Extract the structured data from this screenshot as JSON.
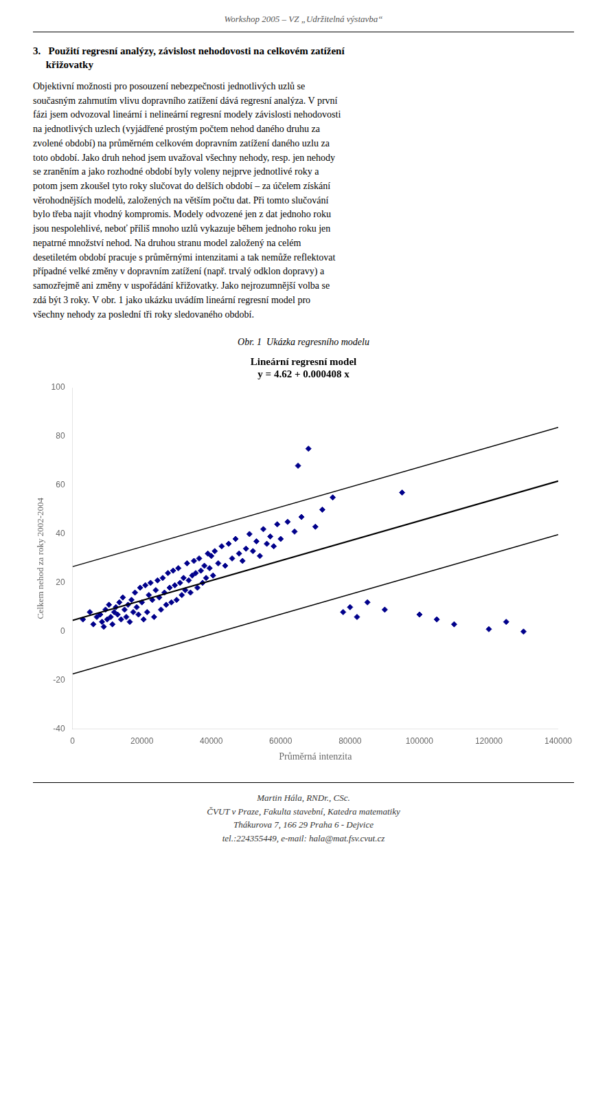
{
  "header": "Workshop 2005 – VZ „Udržitelná výstavba“",
  "section_heading": "3.   Použití regresní analýzy, závislost nehodovosti na celkovém zatížení\n     křižovatky",
  "body_lines": [
    "Objektivní možnosti pro posouzení nebezpečnosti jednotlivých uzlů se",
    "současným zahrnutím vlivu dopravního zatížení dává regresní analýza. V první",
    "fázi jsem odvozoval lineární i nelineární regresní modely závislosti nehodovosti",
    "na jednotlivých uzlech (vyjádřené prostým počtem nehod daného druhu za",
    "zvolené období) na průměrném celkovém dopravním zatížení daného uzlu za",
    "toto období. Jako druh nehod jsem uvažoval všechny nehody, resp. jen nehody",
    "se zraněním a jako rozhodné období byly voleny nejprve jednotlivé roky a",
    "potom jsem zkoušel tyto roky slučovat do delších období – za účelem získání",
    "věrohodnějších modelů, založených na větším počtu dat. Při tomto slučování",
    "bylo třeba najít vhodný kompromis. Modely odvozené jen z dat jednoho roku",
    "jsou nespolehlivé, neboť příliš mnoho uzlů vykazuje během jednoho roku jen",
    "nepatrné množství nehod. Na druhou stranu model založený na celém",
    "desetiletém období pracuje s průměrnými intenzitami a tak nemůže reflektovat",
    "případné velké změny v dopravním zatížení (např. trvalý odklon dopravy) a",
    "samozřejmě ani změny v uspořádání křižovatky. Jako nejrozumnější volba se",
    "zdá být 3 roky. V obr. 1 jako ukázku uvádím lineární regresní model pro",
    "všechny nehody za poslední tři roky sledovaného období."
  ],
  "caption": "Obr. 1  Ukázka regresního modelu",
  "footer_lines": [
    "Martin Hála, RNDr., CSc.",
    "ČVUT v Praze, Fakulta stavební, Katedra matematiky",
    "Thákurova 7, 166 29 Praha 6 - Dejvice",
    "tel.:224355449, e-mail: hala@mat.fsv.cvut.cz"
  ],
  "chart_data": {
    "type": "scatter",
    "title": [
      "Lineární regresní model",
      "y = 4.62 + 0.000408 x"
    ],
    "xlabel": "Průměrná intenzita",
    "ylabel": "Celkem nehod za roky 2002-2004",
    "xlim": [
      0,
      140000
    ],
    "ylim": [
      -40,
      100
    ],
    "xticks": [
      0,
      20000,
      40000,
      60000,
      80000,
      100000,
      120000,
      140000
    ],
    "yticks": [
      -40,
      -20,
      0,
      20,
      40,
      60,
      80,
      100
    ],
    "grid": false,
    "series": [
      {
        "type": "scatter",
        "color": "#00008B",
        "marker": "diamond",
        "x": [
          3000,
          5000,
          6000,
          7000,
          8000,
          8500,
          9000,
          9500,
          10000,
          10500,
          11000,
          11500,
          12000,
          12500,
          13000,
          13500,
          14000,
          14500,
          15000,
          15500,
          16000,
          16500,
          17000,
          17500,
          18000,
          18500,
          19000,
          19500,
          20000,
          20500,
          21000,
          21500,
          22000,
          22500,
          23000,
          23500,
          24000,
          24500,
          25000,
          25500,
          26000,
          26500,
          27000,
          27500,
          28000,
          28500,
          29000,
          29500,
          30000,
          30500,
          31000,
          31500,
          32000,
          32500,
          33000,
          33500,
          34000,
          34500,
          35000,
          35500,
          36000,
          36500,
          37000,
          37500,
          38000,
          38500,
          39000,
          39500,
          40000,
          40500,
          41000,
          42000,
          43000,
          44000,
          45000,
          46000,
          47000,
          48000,
          49000,
          50000,
          51000,
          52000,
          53000,
          54000,
          55000,
          56000,
          57000,
          58000,
          59000,
          60000,
          62000,
          64000,
          65000,
          66000,
          68000,
          70000,
          72000,
          75000,
          78000,
          80000,
          82000,
          85000,
          90000,
          95000,
          100000,
          105000,
          110000,
          120000,
          125000,
          130000
        ],
        "values": [
          5,
          8,
          3,
          6,
          7,
          4,
          2,
          9,
          5,
          11,
          6,
          3,
          8,
          10,
          7,
          12,
          5,
          14,
          9,
          6,
          11,
          4,
          13,
          8,
          16,
          10,
          7,
          18,
          12,
          5,
          19,
          8,
          15,
          20,
          13,
          6,
          17,
          21,
          14,
          9,
          22,
          16,
          11,
          24,
          18,
          12,
          25,
          19,
          13,
          26,
          20,
          15,
          22,
          17,
          28,
          21,
          16,
          23,
          29,
          24,
          18,
          30,
          25,
          20,
          27,
          22,
          32,
          26,
          31,
          23,
          33,
          28,
          35,
          27,
          36,
          30,
          38,
          32,
          29,
          34,
          40,
          33,
          37,
          31,
          42,
          36,
          39,
          35,
          44,
          38,
          45,
          41,
          68,
          47,
          75,
          43,
          50,
          55,
          8,
          10,
          6,
          12,
          9,
          57,
          7,
          5,
          3,
          1,
          4,
          0
        ]
      },
      {
        "type": "line",
        "color": "#000000",
        "line_style": "solid",
        "x": [
          0,
          140000
        ],
        "values": [
          4.62,
          61.74
        ]
      },
      {
        "type": "line",
        "color": "#000000",
        "line_style": "solid",
        "x": [
          0,
          140000
        ],
        "values": [
          26.62,
          83.74
        ]
      },
      {
        "type": "line",
        "color": "#000000",
        "line_style": "solid",
        "x": [
          0,
          140000
        ],
        "values": [
          -17.38,
          39.74
        ]
      }
    ]
  }
}
